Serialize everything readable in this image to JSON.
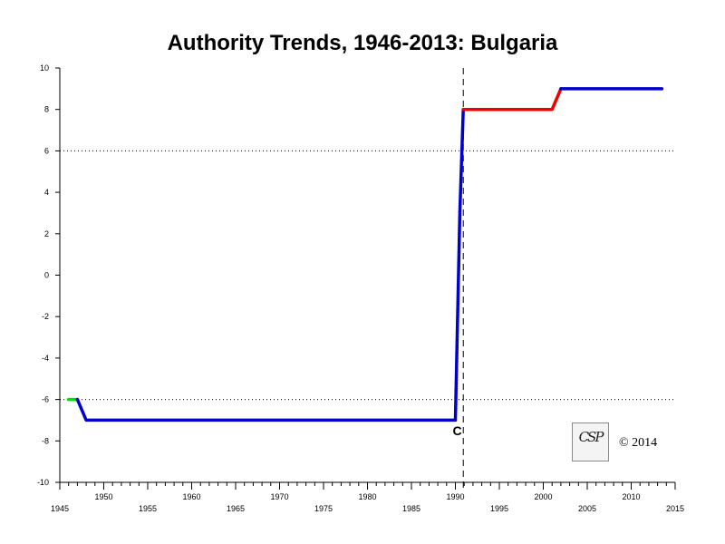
{
  "chart_data": {
    "type": "line",
    "title": "Authority Trends, 1946-2013: Bulgaria",
    "xlabel": "",
    "ylabel": "",
    "xlim": [
      1945,
      2015
    ],
    "ylim": [
      -10,
      10
    ],
    "x_major_ticks": [
      1950,
      1955,
      1960,
      1965,
      1970,
      1975,
      1980,
      1985,
      1990,
      1995,
      2000,
      2005,
      2010,
      2015
    ],
    "x_major_tick_labels": [
      "1950",
      "1955",
      "1960",
      "1965",
      "1970",
      "1975",
      "1980",
      "1985",
      "1990",
      "1995",
      "2000",
      "2005",
      "2010",
      "2015"
    ],
    "x_min_label": "1945",
    "y_ticks": [
      10,
      8,
      6,
      4,
      2,
      0,
      -2,
      -4,
      -6,
      -8,
      -10
    ],
    "y_tick_labels": [
      "10",
      "8",
      "6",
      "4",
      "2",
      "0",
      "-2",
      "-4",
      "-6",
      "-8",
      "-10"
    ],
    "reference_lines": [
      {
        "axis": "y",
        "value": 6,
        "style": "dotted"
      },
      {
        "axis": "y",
        "value": -6,
        "style": "dotted"
      },
      {
        "axis": "x",
        "value": 1990.9,
        "style": "dashed"
      }
    ],
    "series": [
      {
        "color": "#00dd00",
        "points": [
          [
            1946,
            -6
          ],
          [
            1947,
            -6
          ]
        ]
      },
      {
        "color": "#0000cc",
        "points": [
          [
            1947,
            -6
          ],
          [
            1948,
            -7
          ],
          [
            1990,
            -7
          ],
          [
            1990.5,
            3
          ],
          [
            1990.9,
            8
          ]
        ]
      },
      {
        "color": "#ee0000",
        "points": [
          [
            1990.9,
            8
          ],
          [
            2001,
            8
          ],
          [
            2002,
            9
          ]
        ]
      },
      {
        "color": "#0000cc",
        "points": [
          [
            2002,
            9
          ],
          [
            2013.5,
            9
          ]
        ]
      }
    ],
    "annotations": [
      {
        "text": "C",
        "x": 1990,
        "y": -7.5
      }
    ]
  },
  "copyright": "© 2014",
  "logo_text": "CSP"
}
